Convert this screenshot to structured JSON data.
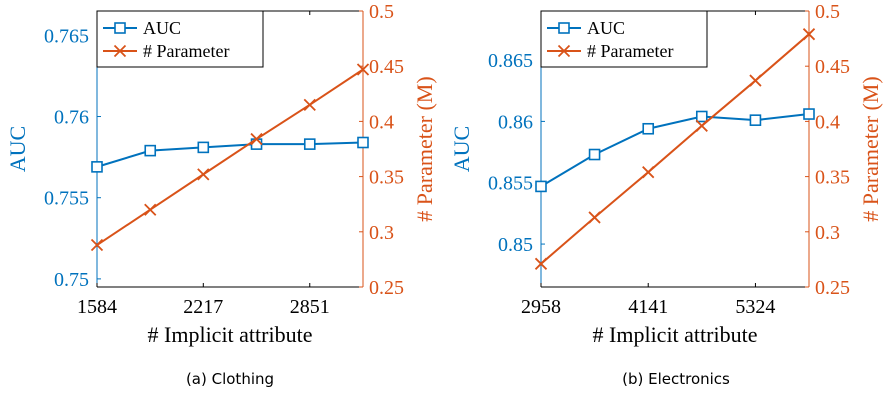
{
  "colors": {
    "auc": "#0072BD",
    "param": "#D95319",
    "axis": "#000000"
  },
  "legend": {
    "auc_label": "AUC",
    "param_label": "# Parameter"
  },
  "chart_data": [
    {
      "type": "line",
      "caption": "(a) Clothing",
      "xlabel": "# Implicit attribute",
      "ylabel": "AUC",
      "y2label": "# Parameter (M)",
      "x": [
        1584,
        1901,
        2217,
        2534,
        2851,
        3168
      ],
      "xlim": [
        1584,
        3168
      ],
      "xticks": [
        1584,
        2217,
        2851
      ],
      "ylim": [
        0.7495,
        0.7665
      ],
      "yticks": [
        0.75,
        0.755,
        0.76,
        0.765
      ],
      "y2lim": [
        0.25,
        0.5
      ],
      "y2ticks": [
        0.25,
        0.3,
        0.35,
        0.4,
        0.45,
        0.5
      ],
      "legend_position": "top-left",
      "series": [
        {
          "name": "AUC",
          "axis": "left",
          "marker": "square",
          "values": [
            0.7569,
            0.7579,
            0.7581,
            0.7583,
            0.7583,
            0.7584
          ]
        },
        {
          "name": "# Parameter",
          "axis": "right",
          "marker": "x",
          "values": [
            0.288,
            0.32,
            0.352,
            0.384,
            0.415,
            0.447
          ]
        }
      ]
    },
    {
      "type": "line",
      "caption": "(b) Electronics",
      "xlabel": "# Implicit attribute",
      "ylabel": "AUC",
      "y2label": "# Parameter (M)",
      "x": [
        2958,
        3549,
        4141,
        4732,
        5324,
        5915
      ],
      "xlim": [
        2958,
        5915
      ],
      "xticks": [
        2958,
        4141,
        5324
      ],
      "ylim": [
        0.8465,
        0.869
      ],
      "yticks": [
        0.85,
        0.855,
        0.86,
        0.865
      ],
      "y2lim": [
        0.25,
        0.5
      ],
      "y2ticks": [
        0.25,
        0.3,
        0.35,
        0.4,
        0.45,
        0.5
      ],
      "legend_position": "top-left",
      "series": [
        {
          "name": "AUC",
          "axis": "left",
          "marker": "square",
          "values": [
            0.8547,
            0.8573,
            0.8594,
            0.8604,
            0.8601,
            0.8606
          ]
        },
        {
          "name": "# Parameter",
          "axis": "right",
          "marker": "x",
          "values": [
            0.271,
            0.313,
            0.354,
            0.396,
            0.437,
            0.479
          ]
        }
      ]
    }
  ]
}
